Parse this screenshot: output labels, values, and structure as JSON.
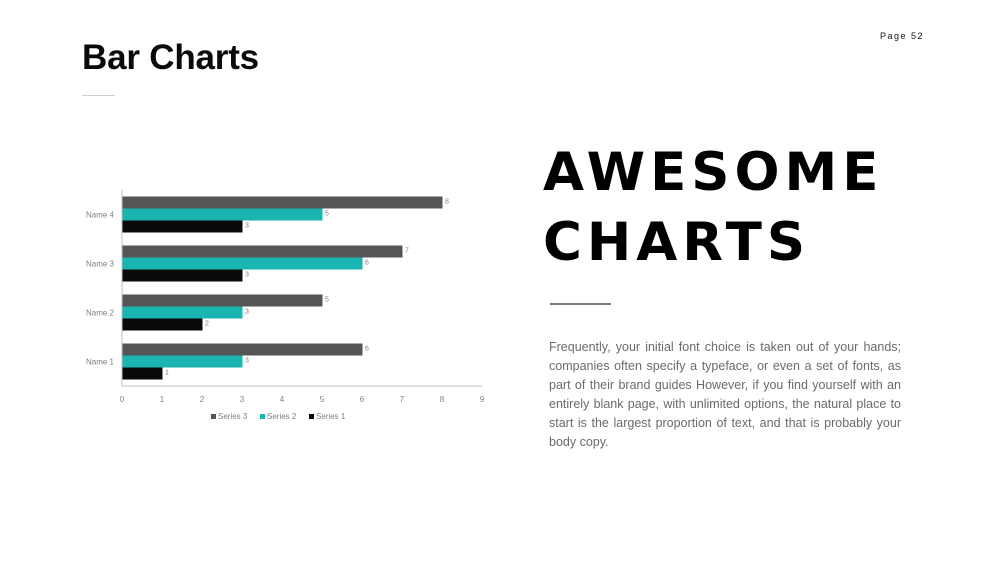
{
  "header": {
    "page_number": "Page 52",
    "title": "Bar Charts"
  },
  "hero": {
    "line1": "AWESOME",
    "line2": "CHARTS"
  },
  "body": {
    "text": "Frequently, your initial font choice is taken out of your hands; companies often specify a typeface, or even a set of fonts, as part of their brand guides However, if you find yourself with an entirely blank page, with unlimited options, the natural place to start is the largest proportion of text, and that is probably your body copy."
  },
  "chart_data": {
    "type": "bar",
    "orientation": "horizontal",
    "categories": [
      "Name 1",
      "Name 2",
      "Name 3",
      "Name 4"
    ],
    "series": [
      {
        "name": "Series 1",
        "values": [
          1,
          2,
          3,
          3
        ],
        "color": "#0a0a0a"
      },
      {
        "name": "Series 2",
        "values": [
          3,
          3,
          6,
          5
        ],
        "color": "#1ab5b0"
      },
      {
        "name": "Series 3",
        "values": [
          6,
          5,
          7,
          8
        ],
        "color": "#555555"
      }
    ],
    "xlim": [
      0,
      9
    ],
    "xticks": [
      0,
      1,
      2,
      3,
      4,
      5,
      6,
      7,
      8,
      9
    ],
    "legend_order": [
      "Series 3",
      "Series 2",
      "Series 1"
    ],
    "legend_position": "bottom",
    "data_labels": true,
    "grid": false
  }
}
